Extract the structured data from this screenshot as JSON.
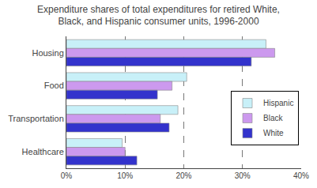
{
  "chart_data": {
    "type": "bar",
    "orientation": "horizontal",
    "title": "Expenditure shares of total expenditures for retired White,\nBlack, and Hispanic consumer units, 1996-2000",
    "categories": [
      "Housing",
      "Food",
      "Transportation",
      "Healthcare"
    ],
    "series": [
      {
        "name": "Hispanic",
        "color": "#c8f0f8",
        "values": [
          34.0,
          20.5,
          19.0,
          9.5
        ]
      },
      {
        "name": "Black",
        "color": "#cc99ee",
        "values": [
          35.5,
          18.0,
          16.0,
          10.0
        ]
      },
      {
        "name": "White",
        "color": "#3333cc",
        "values": [
          31.5,
          15.5,
          17.5,
          12.0
        ]
      }
    ],
    "xlim": [
      0,
      40
    ],
    "xticks": [
      {
        "value": 0,
        "label": "0%"
      },
      {
        "value": 10,
        "label": "10%"
      },
      {
        "value": 20,
        "label": "20%"
      },
      {
        "value": 30,
        "label": "30%"
      },
      {
        "value": 40,
        "label": "40%"
      }
    ],
    "grid": true,
    "legend": "right"
  }
}
